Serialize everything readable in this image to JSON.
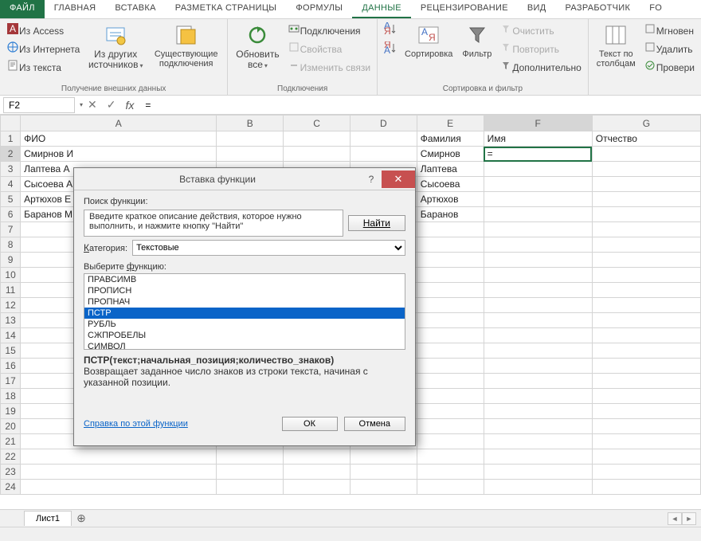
{
  "ribbon": {
    "tabs": [
      "ФАЙЛ",
      "ГЛАВНАЯ",
      "ВСТАВКА",
      "РАЗМЕТКА СТРАНИЦЫ",
      "ФОРМУЛЫ",
      "ДАННЫЕ",
      "РЕЦЕНЗИРОВАНИЕ",
      "ВИД",
      "РАЗРАБОТЧИК",
      "Fo"
    ],
    "active_tab": 5,
    "groups": {
      "external": {
        "label": "Получение внешних данных",
        "access": "Из Access",
        "web": "Из Интернета",
        "text": "Из текста",
        "other": "Из других\nисточников",
        "existing": "Существующие\nподключения"
      },
      "connections": {
        "label": "Подключения",
        "refresh": "Обновить\nвсе",
        "conn": "Подключения",
        "props": "Свойства",
        "edit": "Изменить связи"
      },
      "sortfilter": {
        "label": "Сортировка и фильтр",
        "sort": "Сортировка",
        "filter": "Фильтр",
        "clear": "Очистить",
        "reapply": "Повторить",
        "advanced": "Дополнительно"
      },
      "datatools": {
        "text2col": "Текст по\nстолбцам",
        "flash": "Мгновен",
        "dup": "Удалить",
        "valid": "Провери"
      }
    }
  },
  "namebox": "F2",
  "formula": "=",
  "columns": [
    "A",
    "B",
    "C",
    "D",
    "E",
    "F",
    "G"
  ],
  "active_col": 5,
  "active_row_hdr": 1,
  "rows": [
    {
      "n": 1,
      "A": "ФИО",
      "E": "Фамилия",
      "F": "Имя",
      "G": "Отчество"
    },
    {
      "n": 2,
      "A": "Смирнов И",
      "E": "Смирнов",
      "F": "=",
      "active": true
    },
    {
      "n": 3,
      "A": "Лаптева А",
      "E": "Лаптева"
    },
    {
      "n": 4,
      "A": "Сысоева А",
      "E": "Сысоева"
    },
    {
      "n": 5,
      "A": "Артюхов Е",
      "E": "Артюхов"
    },
    {
      "n": 6,
      "A": "Баранов М",
      "E": "Баранов"
    },
    {
      "n": 7
    },
    {
      "n": 8
    },
    {
      "n": 9
    },
    {
      "n": 10
    },
    {
      "n": 11
    },
    {
      "n": 12
    },
    {
      "n": 13
    },
    {
      "n": 14
    },
    {
      "n": 15
    },
    {
      "n": 16
    },
    {
      "n": 17
    },
    {
      "n": 18
    },
    {
      "n": 19
    },
    {
      "n": 20
    },
    {
      "n": 21
    },
    {
      "n": 22
    },
    {
      "n": 23
    },
    {
      "n": 24
    }
  ],
  "sheet_tab": "Лист1",
  "dialog": {
    "title": "Вставка функции",
    "search_label": "Поиск функции:",
    "search_text": "Введите краткое описание действия, которое нужно выполнить, и нажмите кнопку \"Найти\"",
    "find_btn": "Найти",
    "category_label": "Категория:",
    "category_value": "Текстовые",
    "select_label": "Выберите функцию:",
    "functions": [
      "ПРАВСИМВ",
      "ПРОПИСН",
      "ПРОПНАЧ",
      "ПСТР",
      "РУБЛЬ",
      "СЖПРОБЕЛЫ",
      "СИМВОЛ"
    ],
    "selected_index": 3,
    "desc_sig": "ПСТР(текст;начальная_позиция;количество_знаков)",
    "desc_text": "Возвращает заданное число знаков из строки текста, начиная с указанной позиции.",
    "help_link": "Справка по этой функции",
    "ok": "ОК",
    "cancel": "Отмена"
  },
  "colors": {
    "accent": "#217346",
    "select": "#0a64c8",
    "close": "#c75050"
  }
}
